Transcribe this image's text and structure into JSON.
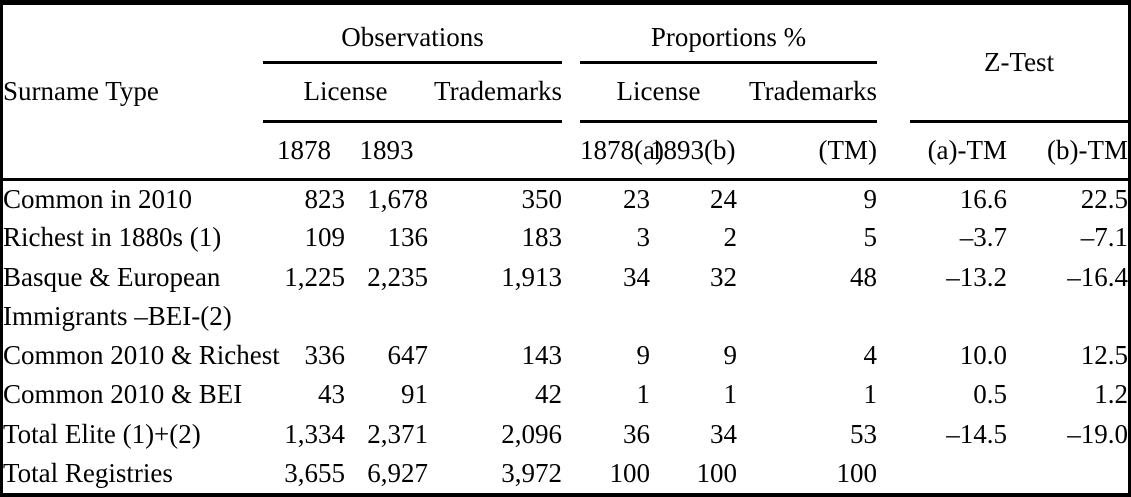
{
  "table": {
    "header": {
      "surname_col": "Surname Type",
      "groups": {
        "observations": "Observations",
        "proportions": "Proportions %",
        "ztest": "Z-Test"
      },
      "sub": {
        "obs_license": "License",
        "obs_trademarks": "Trademarks",
        "prop_license": "License",
        "prop_trademarks": "Trademarks"
      },
      "cols": {
        "obs_1878": "1878",
        "obs_1893": "1893",
        "prop_1878a": "1878(a)",
        "prop_1893b": "1893(b)",
        "prop_tm": "(TM)",
        "z_a_tm": "(a)-TM",
        "z_b_tm": "(b)-TM"
      }
    },
    "rows": [
      {
        "label": "Common in 2010",
        "values": [
          "823",
          "1,678",
          "350",
          "23",
          "24",
          "9",
          "16.6",
          "22.5"
        ]
      },
      {
        "label": "Richest in 1880s (1)",
        "values": [
          "109",
          "136",
          "183",
          "3",
          "2",
          "5",
          "–3.7",
          "–7.1"
        ]
      },
      {
        "label": "Basque & European",
        "values": [
          "1,225",
          "2,235",
          "1,913",
          "34",
          "32",
          "48",
          "–13.2",
          "–16.4"
        ]
      },
      {
        "label": "Immigrants –BEI-(2)",
        "values": [
          "",
          "",
          "",
          "",
          "",
          "",
          "",
          ""
        ]
      },
      {
        "label": "Common 2010 & Richest",
        "values": [
          "336",
          "647",
          "143",
          "9",
          "9",
          "4",
          "10.0",
          "12.5"
        ]
      },
      {
        "label": "Common 2010 & BEI",
        "values": [
          "43",
          "91",
          "42",
          "1",
          "1",
          "1",
          "0.5",
          "1.2"
        ]
      },
      {
        "label": "Total Elite (1)+(2)",
        "values": [
          "1,334",
          "2,371",
          "2,096",
          "36",
          "34",
          "53",
          "–14.5",
          "–19.0"
        ]
      },
      {
        "label": "Total Registries",
        "values": [
          "3,655",
          "6,927",
          "3,972",
          "100",
          "100",
          "100",
          "",
          ""
        ]
      }
    ]
  }
}
